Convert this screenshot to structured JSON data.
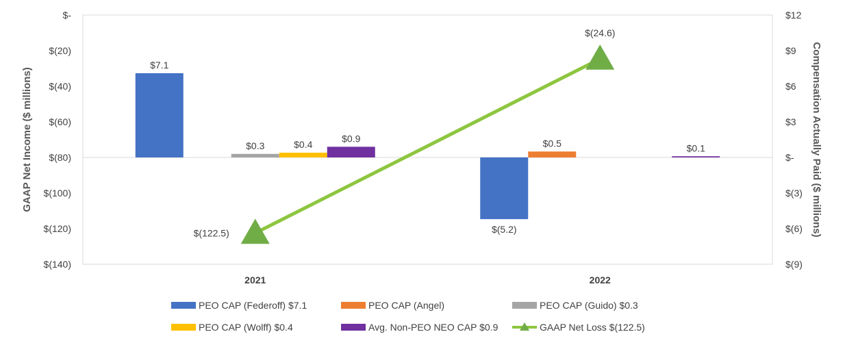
{
  "chart_data": {
    "type": "bar",
    "categories": [
      "2021",
      "2022"
    ],
    "left_axis": {
      "title": "GAAP Net Income ($ millions)",
      "range": [
        -140,
        0
      ],
      "ticks": [
        0,
        -20,
        -40,
        -60,
        -80,
        -100,
        -120,
        -140
      ],
      "tick_labels": [
        "$-",
        "$(20)",
        "$(40)",
        "$(60)",
        "$(80)",
        "$(100)",
        "$(120)",
        "$(140)"
      ]
    },
    "right_axis": {
      "title": "Compensation Actually Paid ($ millions)",
      "range": [
        -9,
        12
      ],
      "ticks": [
        12,
        9,
        6,
        3,
        0,
        -3,
        -6,
        -9
      ],
      "tick_labels": [
        "$12",
        "$9",
        "$6",
        "$3",
        "$-",
        "$(3)",
        "$(6)",
        "$(9)"
      ]
    },
    "series": [
      {
        "name": "PEO CAP (Federoff)",
        "legend": "PEO CAP (Federoff)  $7.1",
        "color": "#4472C4",
        "axis": "right",
        "values": [
          7.1,
          -5.2
        ],
        "labels": [
          "$7.1",
          "$(5.2)"
        ]
      },
      {
        "name": "PEO CAP (Angel)",
        "legend": "PEO CAP (Angel)",
        "color": "#ED7D31",
        "axis": "right",
        "values": [
          null,
          0.5
        ],
        "labels": [
          null,
          "$0.5"
        ]
      },
      {
        "name": "PEO CAP (Guido)",
        "legend": "PEO CAP (Guido)  $0.3",
        "color": "#A5A5A5",
        "axis": "right",
        "values": [
          0.3,
          null
        ],
        "labels": [
          "$0.3",
          null
        ]
      },
      {
        "name": "PEO CAP (Wolff)",
        "legend": "PEO CAP (Wolff)  $0.4",
        "color": "#FFC000",
        "axis": "right",
        "values": [
          0.4,
          null
        ],
        "labels": [
          "$0.4",
          null
        ]
      },
      {
        "name": "Avg. Non-PEO NEO CAP",
        "legend": "Avg. Non-PEO NEO CAP  $0.9",
        "color": "#7030A0",
        "axis": "right",
        "values": [
          0.9,
          0.1
        ],
        "labels": [
          "$0.9",
          "$0.1"
        ]
      }
    ],
    "line_series": {
      "name": "GAAP Net Loss",
      "legend": "GAAP Net Loss  $(122.5)",
      "color": "#8DC63F",
      "marker_color": "#70AD47",
      "axis": "left",
      "values": [
        -122.5,
        -24.6
      ],
      "labels": [
        "$(122.5)",
        "$(24.6)"
      ]
    },
    "legend_position": "bottom"
  }
}
